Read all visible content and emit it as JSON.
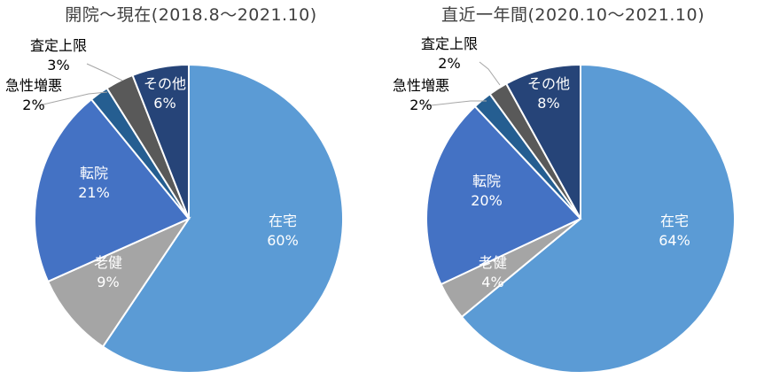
{
  "charts": [
    {
      "title": "開院～現在(2018.8～2021.10)",
      "chart_data": {
        "type": "pie",
        "title": "開院～現在(2018.8～2021.10)",
        "categories": [
          "在宅",
          "老健",
          "転院",
          "急性増悪",
          "査定上限",
          "その他"
        ],
        "values": [
          60,
          9,
          21,
          2,
          3,
          6
        ],
        "labels": [
          "60%",
          "9%",
          "21%",
          "2%",
          "3%",
          "6%"
        ],
        "colors": [
          "#5b9bd5",
          "#a5a5a5",
          "#4472c4",
          "#255e91",
          "#595959",
          "#264478"
        ]
      }
    },
    {
      "title": "直近一年間(2020.10～2021.10)",
      "chart_data": {
        "type": "pie",
        "title": "直近一年間(2020.10～2021.10)",
        "categories": [
          "在宅",
          "老健",
          "転院",
          "急性増悪",
          "査定上限",
          "その他"
        ],
        "values": [
          64,
          4,
          20,
          2,
          2,
          8
        ],
        "labels": [
          "64%",
          "4%",
          "20%",
          "2%",
          "2%",
          "8%"
        ],
        "colors": [
          "#5b9bd5",
          "#a5a5a5",
          "#4472c4",
          "#255e91",
          "#595959",
          "#264478"
        ]
      }
    }
  ]
}
